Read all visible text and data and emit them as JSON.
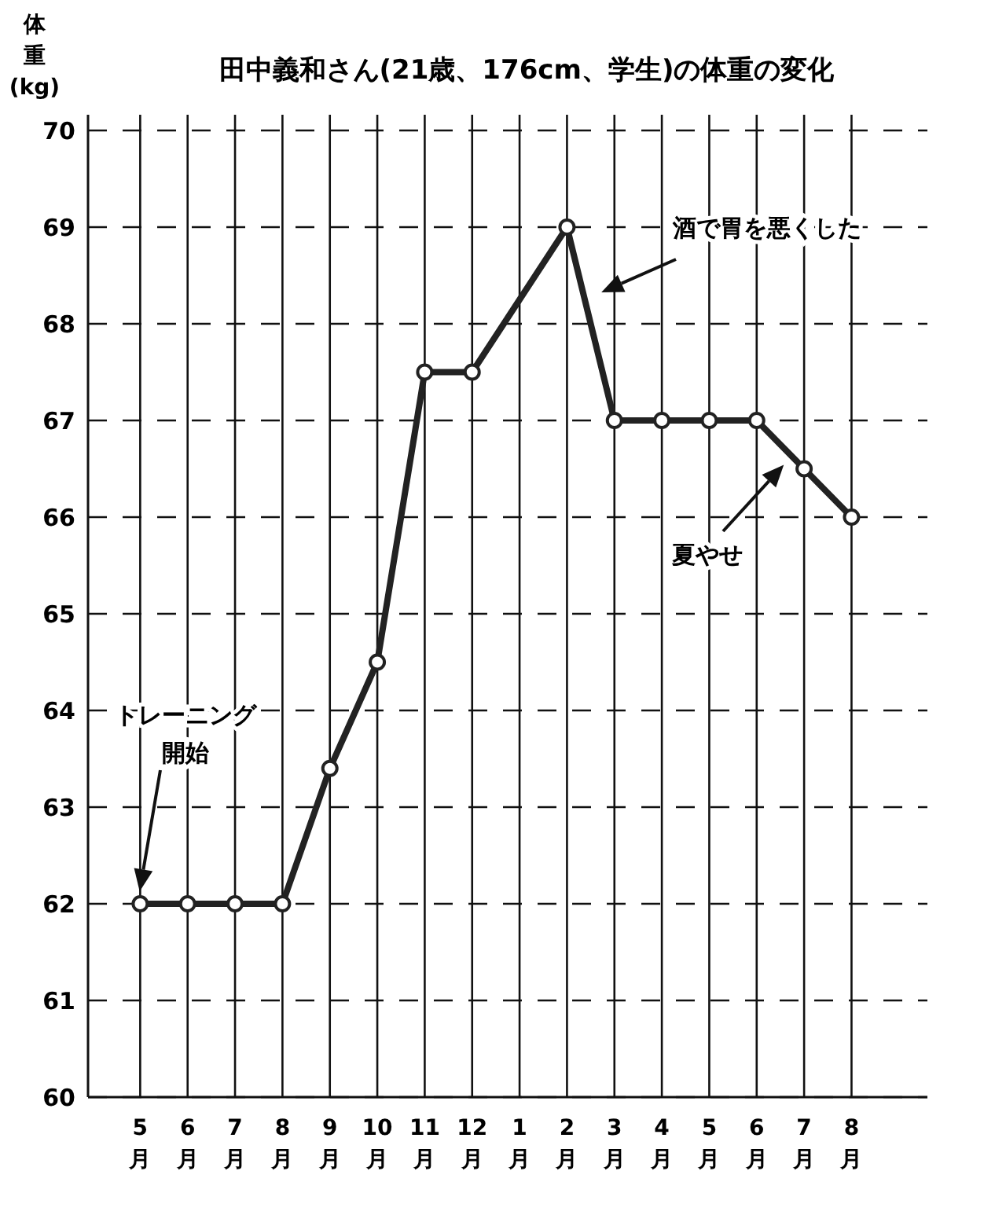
{
  "chart_data": {
    "type": "line",
    "title": "田中義和さん(21歳、176cm、学生)の体重の変化",
    "ylabel": "体重(kg)",
    "categories": [
      "5月",
      "6月",
      "7月",
      "8月",
      "9月",
      "10月",
      "11月",
      "12月",
      "1月",
      "2月",
      "3月",
      "4月",
      "5月",
      "6月",
      "7月",
      "8月"
    ],
    "ylim": [
      60,
      70
    ],
    "yticks": [
      60,
      61,
      62,
      63,
      64,
      65,
      66,
      67,
      68,
      69,
      70
    ],
    "series": [
      {
        "color": "#222222",
        "values": [
          62,
          62,
          62,
          62,
          63.4,
          64.5,
          67.5,
          67.5,
          null,
          69,
          67,
          67,
          67,
          67,
          66.5,
          66
        ]
      }
    ],
    "grid": true,
    "marker": "circle",
    "line_style": "solid",
    "annotations": [
      "トレーニング開始",
      "酒で胃を悪くした",
      "夏やせ"
    ]
  }
}
